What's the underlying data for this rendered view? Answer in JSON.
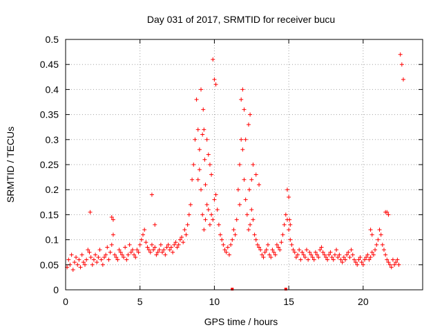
{
  "chart_data": {
    "type": "scatter",
    "title": "Day 031 of 2017, SRMTID for receiver bucu",
    "xlabel": "GPS time / hours",
    "ylabel": "SRMTID / TECUs",
    "xlim": [
      0,
      24
    ],
    "ylim": [
      0,
      0.5
    ],
    "xticks": [
      0,
      5,
      10,
      15,
      20
    ],
    "yticks": [
      0,
      0.05,
      0.1,
      0.15,
      0.2,
      0.25,
      0.3,
      0.35,
      0.4,
      0.45,
      0.5
    ],
    "grid": true,
    "marker": "plus",
    "color": "#ff0000",
    "series_name": "SRMTID",
    "points_x": [
      0.1,
      0.2,
      0.3,
      0.4,
      0.5,
      0.6,
      0.7,
      0.8,
      0.9,
      1.0,
      1.1,
      1.2,
      1.3,
      1.4,
      1.5,
      1.6,
      1.7,
      1.8,
      1.9,
      2.0,
      2.1,
      2.2,
      2.3,
      2.4,
      2.5,
      2.6,
      2.7,
      2.8,
      2.9,
      3.0,
      3.1,
      3.2,
      3.3,
      3.4,
      3.5,
      3.6,
      3.7,
      3.8,
      3.9,
      4.0,
      4.1,
      4.2,
      4.3,
      4.4,
      4.5,
      4.6,
      4.7,
      4.8,
      4.9,
      5.0,
      5.1,
      5.2,
      5.3,
      5.4,
      5.5,
      5.6,
      5.7,
      5.8,
      5.9,
      6.0,
      6.1,
      6.2,
      6.3,
      6.4,
      6.5,
      6.6,
      6.7,
      6.8,
      6.9,
      7.0,
      7.1,
      7.2,
      7.3,
      7.4,
      7.5,
      7.6,
      7.7,
      7.8,
      7.9,
      8.0,
      8.1,
      8.2,
      8.3,
      8.4,
      8.5,
      8.6,
      8.7,
      8.8,
      8.9,
      9.0,
      9.1,
      9.2,
      9.3,
      9.4,
      9.5,
      9.6,
      9.7,
      9.8,
      9.9,
      10.0,
      10.1,
      10.2,
      10.3,
      10.4,
      10.5,
      10.6,
      10.7,
      10.8,
      10.9,
      11.0,
      11.1,
      11.2,
      11.3,
      11.4,
      11.5,
      11.6,
      11.7,
      11.8,
      11.9,
      12.0,
      12.1,
      12.2,
      12.3,
      12.4,
      12.5,
      12.6,
      12.7,
      12.8,
      12.9,
      13.0,
      13.1,
      13.2,
      13.3,
      13.4,
      13.5,
      13.6,
      13.7,
      13.8,
      13.9,
      14.0,
      14.1,
      14.2,
      14.3,
      14.4,
      14.5,
      14.6,
      14.7,
      14.8,
      14.9,
      15.0,
      15.1,
      15.2,
      15.3,
      15.4,
      15.5,
      15.6,
      15.7,
      15.8,
      15.9,
      16.0,
      16.1,
      16.2,
      16.3,
      16.4,
      16.5,
      16.6,
      16.7,
      16.8,
      16.9,
      17.0,
      17.1,
      17.2,
      17.3,
      17.4,
      17.5,
      17.6,
      17.7,
      17.8,
      17.9,
      18.0,
      18.1,
      18.2,
      18.3,
      18.4,
      18.5,
      18.6,
      18.7,
      18.8,
      18.9,
      19.0,
      19.1,
      19.2,
      19.3,
      19.4,
      19.5,
      19.6,
      19.7,
      19.8,
      19.9,
      20.0,
      20.1,
      20.2,
      20.3,
      20.4,
      20.5,
      20.6,
      20.7,
      20.8,
      20.9,
      21.0,
      21.1,
      21.2,
      21.3,
      21.4,
      21.5,
      21.6,
      21.7,
      21.8,
      21.9,
      22.0,
      22.1,
      22.2,
      22.3,
      22.4,
      22.5,
      22.6,
      22.7,
      9.1,
      9.25,
      9.3,
      9.2,
      9.35,
      9.0,
      8.9,
      9.4,
      9.5,
      9.6,
      9.7,
      9.8,
      9.9,
      10.0,
      10.1,
      11.8,
      11.9,
      12.0,
      12.1,
      12.3,
      12.4,
      12.5,
      12.35,
      11.7,
      12.6,
      12.8,
      13.0,
      14.9,
      15.0,
      15.05,
      15.1,
      20.5,
      20.6,
      21.5,
      21.6,
      21.7,
      1.65,
      3.1,
      3.2,
      5.8,
      6.0,
      8.7,
      8.8,
      8.6
    ],
    "points_y": [
      0.045,
      0.06,
      0.05,
      0.07,
      0.04,
      0.055,
      0.065,
      0.05,
      0.06,
      0.045,
      0.07,
      0.055,
      0.05,
      0.06,
      0.08,
      0.075,
      0.065,
      0.05,
      0.06,
      0.07,
      0.055,
      0.065,
      0.08,
      0.06,
      0.05,
      0.065,
      0.07,
      0.085,
      0.06,
      0.075,
      0.09,
      0.11,
      0.07,
      0.065,
      0.06,
      0.08,
      0.075,
      0.07,
      0.065,
      0.085,
      0.06,
      0.07,
      0.09,
      0.075,
      0.08,
      0.07,
      0.065,
      0.08,
      0.075,
      0.09,
      0.1,
      0.11,
      0.12,
      0.095,
      0.085,
      0.08,
      0.075,
      0.09,
      0.08,
      0.085,
      0.07,
      0.075,
      0.08,
      0.09,
      0.075,
      0.08,
      0.07,
      0.085,
      0.09,
      0.08,
      0.085,
      0.075,
      0.09,
      0.095,
      0.085,
      0.09,
      0.1,
      0.105,
      0.095,
      0.12,
      0.11,
      0.13,
      0.15,
      0.17,
      0.22,
      0.25,
      0.3,
      0.38,
      0.32,
      0.28,
      0.2,
      0.15,
      0.12,
      0.14,
      0.17,
      0.16,
      0.13,
      0.15,
      0.14,
      0.18,
      0.19,
      0.16,
      0.13,
      0.11,
      0.1,
      0.09,
      0.08,
      0.075,
      0.085,
      0.07,
      0.09,
      0.1,
      0.12,
      0.11,
      0.14,
      0.2,
      0.25,
      0.3,
      0.28,
      0.22,
      0.18,
      0.15,
      0.12,
      0.13,
      0.16,
      0.14,
      0.11,
      0.1,
      0.09,
      0.085,
      0.08,
      0.07,
      0.065,
      0.075,
      0.08,
      0.09,
      0.07,
      0.065,
      0.08,
      0.075,
      0.07,
      0.09,
      0.085,
      0.08,
      0.095,
      0.11,
      0.13,
      0.15,
      0.14,
      0.12,
      0.1,
      0.09,
      0.08,
      0.075,
      0.065,
      0.07,
      0.08,
      0.06,
      0.075,
      0.07,
      0.065,
      0.08,
      0.06,
      0.075,
      0.07,
      0.065,
      0.06,
      0.075,
      0.07,
      0.065,
      0.08,
      0.085,
      0.075,
      0.07,
      0.065,
      0.06,
      0.07,
      0.075,
      0.065,
      0.06,
      0.07,
      0.08,
      0.065,
      0.07,
      0.06,
      0.055,
      0.065,
      0.06,
      0.07,
      0.075,
      0.065,
      0.08,
      0.07,
      0.06,
      0.055,
      0.05,
      0.06,
      0.065,
      0.055,
      0.05,
      0.06,
      0.065,
      0.07,
      0.06,
      0.065,
      0.075,
      0.07,
      0.08,
      0.09,
      0.1,
      0.12,
      0.11,
      0.09,
      0.08,
      0.07,
      0.06,
      0.055,
      0.05,
      0.045,
      0.06,
      0.05,
      0.055,
      0.06,
      0.05,
      0.47,
      0.45,
      0.42,
      0.4,
      0.36,
      0.32,
      0.31,
      0.26,
      0.24,
      0.22,
      0.21,
      0.3,
      0.27,
      0.25,
      0.23,
      0.46,
      0.42,
      0.41,
      0.38,
      0.4,
      0.36,
      0.3,
      0.33,
      0.35,
      0.22,
      0.2,
      0.17,
      0.25,
      0.23,
      0.21,
      0.2,
      0.185,
      0.14,
      0.13,
      0.12,
      0.11,
      0.155,
      0.155,
      0.15,
      0.155,
      0.145,
      0.14,
      0.19,
      0.13
    ],
    "marks_on_axis": [
      11.2,
      14.8
    ]
  }
}
